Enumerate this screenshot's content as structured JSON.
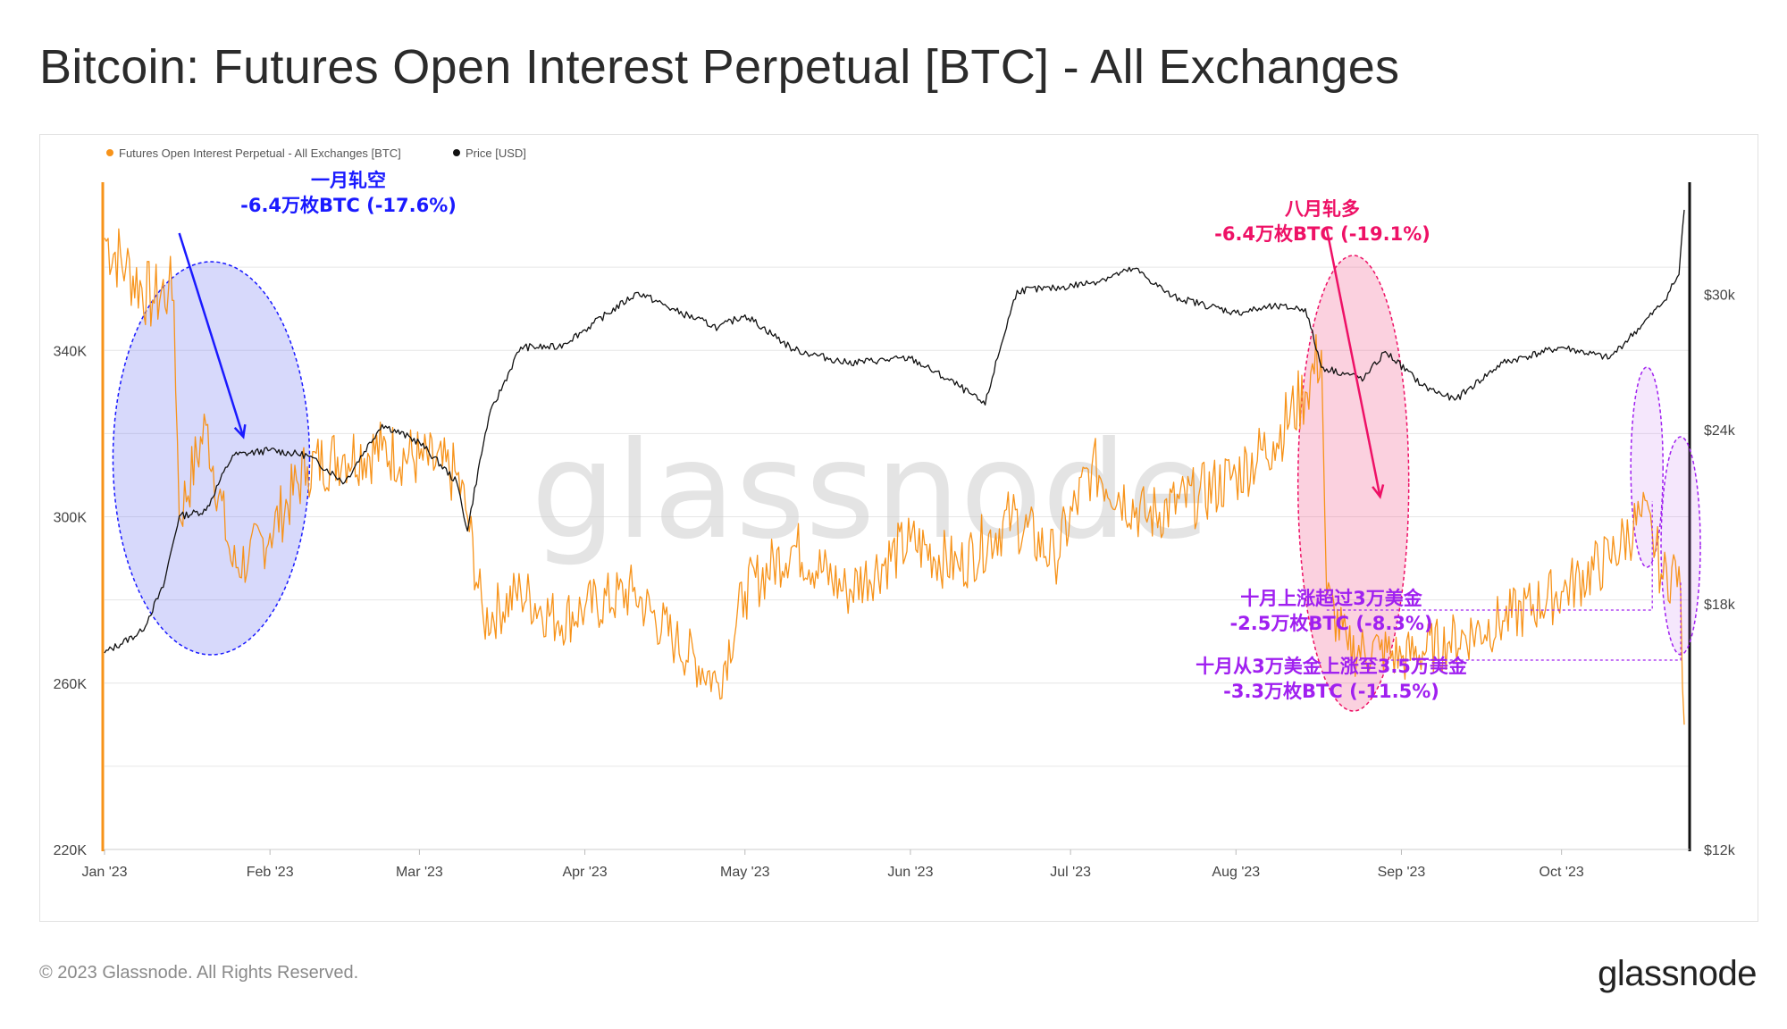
{
  "title": "Bitcoin: Futures Open Interest Perpetual [BTC] - All Exchanges",
  "footer": {
    "copyright": "© 2023 Glassnode. All Rights Reserved.",
    "brand": "glassnode"
  },
  "watermark": "glassnode",
  "chart_data": {
    "type": "line",
    "x_ticks": [
      "Jan '23",
      "Feb '23",
      "Mar '23",
      "Apr '23",
      "May '23",
      "Jun '23",
      "Jul '23",
      "Aug '23",
      "Sep '23",
      "Oct '23"
    ],
    "x_range": [
      "2023-01-01",
      "2023-10-25"
    ],
    "y_left": {
      "ticks": [
        "220K",
        "260K",
        "300K",
        "340K"
      ],
      "range": [
        220000,
        380000
      ]
    },
    "y_right": {
      "ticks": [
        "$12k",
        "$18k",
        "$24k",
        "$30k"
      ],
      "range": [
        12000,
        36000
      ],
      "scale": "log"
    },
    "grid": true,
    "legend_position": "top-left",
    "series": [
      {
        "name": "Futures Open Interest Perpetual - All Exchanges [BTC]",
        "axis": "left",
        "color": "#f7931a",
        "x": [
          "2023-01-01",
          "2023-01-05",
          "2023-01-10",
          "2023-01-13",
          "2023-01-14",
          "2023-01-15",
          "2023-01-20",
          "2023-01-25",
          "2023-01-28",
          "2023-02-01",
          "2023-02-08",
          "2023-02-15",
          "2023-02-22",
          "2023-03-01",
          "2023-03-08",
          "2023-03-10",
          "2023-03-13",
          "2023-03-20",
          "2023-03-27",
          "2023-04-01",
          "2023-04-10",
          "2023-04-18",
          "2023-04-26",
          "2023-05-01",
          "2023-05-10",
          "2023-05-20",
          "2023-06-01",
          "2023-06-10",
          "2023-06-20",
          "2023-06-28",
          "2023-07-05",
          "2023-07-15",
          "2023-07-25",
          "2023-08-01",
          "2023-08-08",
          "2023-08-14",
          "2023-08-17",
          "2023-08-18",
          "2023-08-22",
          "2023-08-28",
          "2023-09-01",
          "2023-09-10",
          "2023-09-20",
          "2023-10-01",
          "2023-10-10",
          "2023-10-16",
          "2023-10-18",
          "2023-10-20",
          "2023-10-23",
          "2023-10-24"
        ],
        "y": [
          367000,
          360000,
          352000,
          355000,
          352000,
          300000,
          322000,
          288000,
          290000,
          296000,
          312000,
          315000,
          316000,
          314000,
          310000,
          300000,
          275000,
          282000,
          275000,
          278000,
          282000,
          270000,
          260000,
          282000,
          293000,
          282000,
          294000,
          288000,
          300000,
          290000,
          312000,
          300000,
          305000,
          310000,
          318000,
          330000,
          340000,
          281000,
          268000,
          268000,
          266000,
          270000,
          275000,
          282000,
          290000,
          300000,
          296000,
          285000,
          288000,
          250000
        ]
      },
      {
        "name": "Price [USD]",
        "axis": "right",
        "color": "#111111",
        "x": [
          "2023-01-01",
          "2023-01-08",
          "2023-01-12",
          "2023-01-15",
          "2023-01-20",
          "2023-01-25",
          "2023-02-01",
          "2023-02-08",
          "2023-02-15",
          "2023-02-22",
          "2023-03-01",
          "2023-03-08",
          "2023-03-10",
          "2023-03-14",
          "2023-03-20",
          "2023-03-27",
          "2023-04-01",
          "2023-04-11",
          "2023-04-18",
          "2023-04-26",
          "2023-05-01",
          "2023-05-10",
          "2023-05-20",
          "2023-06-01",
          "2023-06-10",
          "2023-06-15",
          "2023-06-21",
          "2023-06-28",
          "2023-07-05",
          "2023-07-13",
          "2023-07-20",
          "2023-08-01",
          "2023-08-08",
          "2023-08-14",
          "2023-08-17",
          "2023-08-25",
          "2023-08-29",
          "2023-09-05",
          "2023-09-11",
          "2023-09-20",
          "2023-10-01",
          "2023-10-10",
          "2023-10-16",
          "2023-10-20",
          "2023-10-23",
          "2023-10-24"
        ],
        "y": [
          16600,
          17200,
          18500,
          20800,
          21000,
          23000,
          23200,
          23000,
          22000,
          24200,
          23500,
          22000,
          20300,
          24500,
          27500,
          27500,
          28300,
          30100,
          29200,
          28400,
          29000,
          27400,
          26800,
          27000,
          25800,
          25000,
          30200,
          30300,
          30600,
          31300,
          29900,
          29100,
          29400,
          29300,
          26600,
          26100,
          27300,
          25800,
          25200,
          26800,
          27500,
          27000,
          28500,
          29600,
          31000,
          34500
        ]
      }
    ],
    "annotations": [
      {
        "lines": [
          "一月轧空",
          "-6.4万枚BTC (-17.6%)"
        ],
        "color": "#1a1aff"
      },
      {
        "lines": [
          "八月轧多",
          "-6.4万枚BTC (-19.1%)"
        ],
        "color": "#ee1166"
      },
      {
        "lines": [
          "十月上涨超过3万美金",
          "-2.5万枚BTC (-8.3%)"
        ],
        "color": "#a020f0"
      },
      {
        "lines": [
          "十月从3万美金上涨至3.5万美金",
          "-3.3万枚BTC (-11.5%)"
        ],
        "color": "#a020f0"
      }
    ]
  }
}
